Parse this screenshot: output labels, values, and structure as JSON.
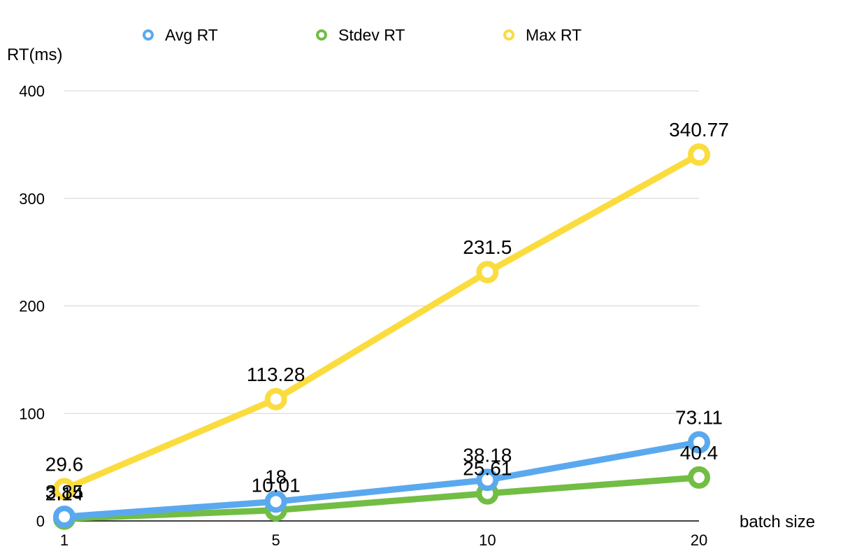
{
  "chart_data": {
    "type": "line",
    "title": "",
    "xlabel": "batch size",
    "ylabel": "RT(ms)",
    "categories": [
      "1",
      "5",
      "10",
      "20"
    ],
    "ylim": [
      0,
      400
    ],
    "yticks": [
      0,
      100,
      200,
      300,
      400
    ],
    "grid": true,
    "legend_position": "top",
    "series": [
      {
        "name": "Avg RT",
        "color": "#5aa9ef",
        "values": [
          3.85,
          18,
          38.18,
          73.11
        ],
        "labels": [
          "3.85",
          "18",
          "38.18",
          "73.11"
        ]
      },
      {
        "name": "Stdev RT",
        "color": "#72bd44",
        "values": [
          2.14,
          10.01,
          25.61,
          40.4
        ],
        "labels": [
          "2.14",
          "10.01",
          "25.61",
          "40.4"
        ]
      },
      {
        "name": "Max RT",
        "color": "#fbdc3e",
        "values": [
          29.6,
          113.28,
          231.5,
          340.77
        ],
        "labels": [
          "29.6",
          "113.28",
          "231.5",
          "340.77"
        ]
      }
    ]
  }
}
